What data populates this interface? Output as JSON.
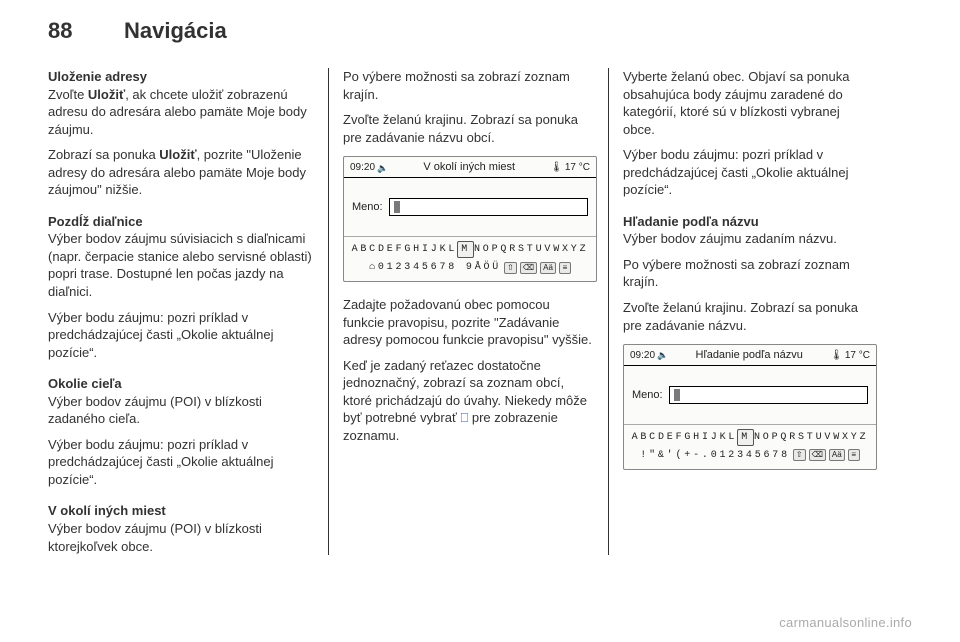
{
  "page": {
    "number": "88",
    "section": "Navigácia"
  },
  "col1": {
    "h1": "Uloženie adresy",
    "p1a": "Zvoľte ",
    "p1b": "Uložiť",
    "p1c": ", ak chcete uložiť zobrazenú adresu do adresára alebo pamäte Moje body záujmu.",
    "p2a": "Zobrazí sa ponuka ",
    "p2b": "Uložiť",
    "p2c": ", pozrite \"Uloženie adresy do adresára alebo pamäte Moje body záujmou\" nižšie.",
    "h2": "Pozdĺž diaľnice",
    "p3": "Výber bodov záujmu súvisiacich s diaľnicami (napr. čerpacie stanice alebo servisné oblasti) popri trase. Dostupné len počas jazdy na diaľnici.",
    "p4": "Výber bodu záujmu: pozri príklad v predchádzajúcej časti „Okolie aktuálnej pozície“.",
    "h3": "Okolie cieľa",
    "p5": "Výber bodov záujmu (POI) v blízkosti zadaného cieľa.",
    "p6": "Výber bodu záujmu: pozri príklad v predchádzajúcej časti „Okolie aktuálnej pozície“.",
    "h4": "V okolí iných miest",
    "p7": "Výber bodov záujmu (POI) v blízkosti ktorejkoľvek obce."
  },
  "col2": {
    "p1": "Po výbere možnosti sa zobrazí zoznam krajín.",
    "p2": "Zvoľte želanú krajinu. Zobrazí sa ponuka pre zadávanie názvu obcí.",
    "p3": "Zadajte požadovanú obec pomocou funkcie pravopisu, pozrite \"Zadávanie adresy pomocou funkcie pravopisu\" vyššie.",
    "p4a": "Keď je zadaný reťazec dostatočne jednoznačný, zobrazí sa zoznam obcí, ktoré prichádzajú do úvahy. Niekedy môže byť potrebné vybrať ",
    "p4b_link": "⎕",
    "p4c": " pre zobrazenie zoznamu."
  },
  "col3": {
    "p1": "Vyberte želanú obec. Objaví sa ponuka obsahujúca body záujmu zaradené do kategórií, ktoré sú v blízkosti vybranej obce.",
    "p2": "Výber bodu záujmu: pozri príklad v predchádzajúcej časti „Okolie aktuálnej pozície“.",
    "h1": "Hľadanie podľa názvu",
    "p3": "Výber bodov záujmu zadaním názvu.",
    "p4": "Po výbere možnosti sa zobrazí zoznam krajín.",
    "p5": "Zvoľte želanú krajinu. Zobrazí sa ponuka pre zadávanie názvu."
  },
  "device1": {
    "time": "09:20",
    "title": "V okolí iných miest",
    "temp": "17 °C",
    "field_label": "Meno:",
    "kbd_row1": "ABCDEFGHIJKLMNOPQRSTUVWXYZ",
    "kbd_row2_chars": "⌂012345678 9ÅÖÜ",
    "btn_up": "⇧",
    "btn_del": "⌫",
    "btn_aa": "Aä",
    "btn_list": "≡"
  },
  "device2": {
    "time": "09:20",
    "title": "Hľadanie podľa názvu",
    "temp": "17 °C",
    "field_label": "Meno:",
    "kbd_row1": "ABCDEFGHIJKLMNOPQRSTUVWXYZ",
    "kbd_row2_chars": "!\"&'(+-.012345678",
    "btn_up": "⇧",
    "btn_del": "⌫",
    "btn_aa": "Aä",
    "btn_list": "≡"
  },
  "footer": {
    "url": "carmanualsonline.info"
  },
  "colors": {
    "text": "#323232",
    "link": "#2a5db0",
    "footer": "#aaaaaa",
    "device_bg": "#fbfbf9"
  }
}
